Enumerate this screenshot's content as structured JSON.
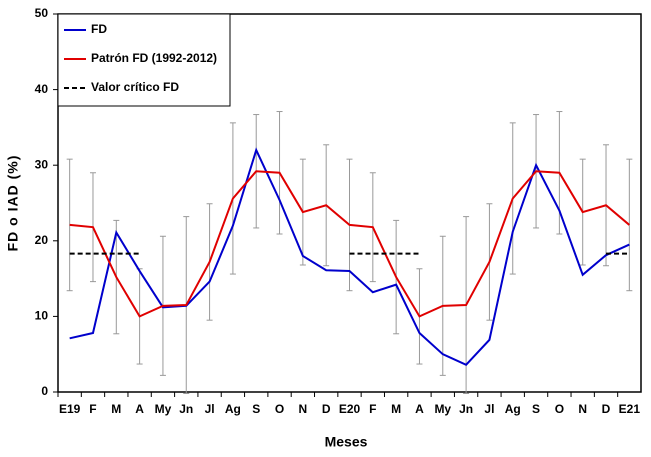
{
  "chart_data": {
    "type": "line",
    "xlabel": "Meses",
    "ylabel": "FD o IAD (%)",
    "categories": [
      "E19",
      "F",
      "M",
      "A",
      "My",
      "Jn",
      "Jl",
      "Ag",
      "S",
      "O",
      "N",
      "D",
      "E20",
      "F",
      "M",
      "A",
      "My",
      "Jn",
      "Jl",
      "Ag",
      "S",
      "O",
      "N",
      "D",
      "E21"
    ],
    "ylim": [
      0,
      50
    ],
    "yticks": [
      0,
      10,
      20,
      30,
      40,
      50
    ],
    "legend": "upper left",
    "series": [
      {
        "name": "FD",
        "color": "#0000cc",
        "style": "solid",
        "values": [
          7.1,
          7.8,
          21.1,
          16,
          11.2,
          11.4,
          14.6,
          22,
          32,
          25.4,
          18,
          16.1,
          16,
          13.2,
          14.2,
          7.8,
          5,
          3.6,
          6.9,
          21.2,
          30,
          24,
          15.5,
          18.1,
          19.5
        ]
      },
      {
        "name": "Patrón FD (1992-2012)",
        "color": "#e00000",
        "style": "solid",
        "values": [
          22.1,
          21.8,
          15.2,
          10,
          11.4,
          11.5,
          17.2,
          25.6,
          29.2,
          29,
          23.8,
          24.7,
          22.1,
          21.8,
          15.2,
          10,
          11.4,
          11.5,
          17.2,
          25.6,
          29.2,
          29,
          23.8,
          24.7,
          22.1
        ],
        "errors": [
          8.7,
          7.2,
          7.5,
          6.3,
          9.2,
          11.7,
          7.7,
          10,
          7.5,
          8.1,
          7,
          8,
          8.7,
          7.2,
          7.5,
          6.3,
          9.2,
          11.7,
          7.7,
          10,
          7.5,
          8.1,
          7,
          8,
          8.7
        ]
      },
      {
        "name": "Valor crítico FD",
        "color": "#000000",
        "style": "dashed",
        "values": [
          18.3,
          18.3,
          18.3,
          18.3,
          null,
          null,
          null,
          null,
          null,
          null,
          null,
          null,
          18.3,
          18.3,
          18.3,
          18.3,
          null,
          null,
          null,
          null,
          null,
          null,
          null,
          18.3,
          18.3
        ]
      }
    ]
  }
}
